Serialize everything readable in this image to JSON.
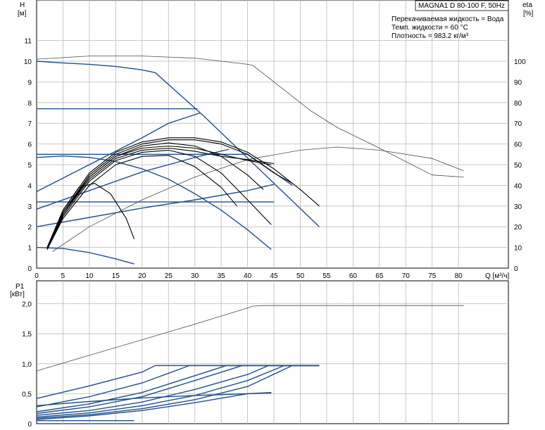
{
  "title": "MAGNA1 D 80-100 F, 50Hz",
  "conditions": [
    "Перекачиваемая жидкость = Вода",
    "Темп. жидкости = 60 °C",
    "Плотность = 983.2 кг/м³"
  ],
  "colors": {
    "blue": "#1f4e8c",
    "grid": "#b9b9b9",
    "black": "#000000",
    "thin": "#4a4a4a"
  },
  "chart_data": [
    {
      "type": "line",
      "name": "head-efficiency",
      "xlabel": "Q [м³/ч]",
      "ylabel": "H",
      "ylabel_unit": "[м]",
      "y2label": "eta",
      "y2label_unit": "[%]",
      "xlim": [
        0,
        90
      ],
      "ylim": [
        0,
        12
      ],
      "y2lim": [
        0,
        120
      ],
      "x_ticks": [
        0,
        5,
        10,
        15,
        20,
        25,
        30,
        35,
        40,
        45,
        50,
        55,
        60,
        65,
        70,
        75,
        80
      ],
      "y_ticks": [
        0,
        1,
        2,
        3,
        4,
        5,
        6,
        7,
        8,
        9,
        10,
        11
      ],
      "y2_ticks": [
        0,
        10,
        20,
        30,
        40,
        50,
        60,
        70,
        80,
        90,
        100
      ],
      "grid": true,
      "series": [
        {
          "kind": "head",
          "style": "blue",
          "x": [
            0,
            5,
            10,
            15,
            20,
            22.5,
            31.7,
            53.6
          ],
          "y": [
            10.0,
            9.92,
            9.85,
            9.75,
            9.58,
            9.45,
            7.35,
            2.0
          ]
        },
        {
          "kind": "head",
          "style": "blue",
          "x": [
            0,
            30.5
          ],
          "y": [
            7.7,
            7.7
          ]
        },
        {
          "kind": "head",
          "style": "blue",
          "x": [
            0,
            10,
            20,
            30,
            40,
            48.5
          ],
          "y": [
            5.5,
            5.5,
            5.5,
            5.5,
            5.5,
            4.0
          ]
        },
        {
          "kind": "head",
          "style": "blue",
          "x": [
            0,
            45
          ],
          "y": [
            3.2,
            3.2
          ]
        },
        {
          "kind": "head",
          "style": "blue",
          "x": [
            0,
            5,
            10,
            15,
            20,
            25,
            30,
            35,
            40,
            44.5
          ],
          "y": [
            5.35,
            5.42,
            5.35,
            5.15,
            4.8,
            4.3,
            3.6,
            2.8,
            1.85,
            0.9
          ]
        },
        {
          "kind": "head",
          "style": "blue",
          "x": [
            0,
            5,
            10,
            15,
            18.5
          ],
          "y": [
            1.0,
            0.95,
            0.75,
            0.45,
            0.2
          ]
        },
        {
          "kind": "control",
          "style": "blue",
          "x": [
            0,
            10,
            20,
            25,
            31
          ],
          "y": [
            3.7,
            5.0,
            6.3,
            7.0,
            7.5
          ]
        },
        {
          "kind": "control",
          "style": "blue",
          "x": [
            0,
            10,
            20,
            30,
            36.5
          ],
          "y": [
            2.85,
            3.75,
            4.65,
            5.35,
            5.75
          ]
        },
        {
          "kind": "control",
          "style": "blue",
          "x": [
            0,
            10,
            20,
            30,
            40,
            45
          ],
          "y": [
            2.0,
            2.45,
            2.9,
            3.3,
            3.75,
            4.05
          ]
        },
        {
          "kind": "eff",
          "style": "thin",
          "x": [
            0,
            10,
            20,
            30,
            40,
            41,
            52,
            57,
            65,
            75,
            81
          ],
          "y2": [
            101,
            102.5,
            102.5,
            101.5,
            98.5,
            98,
            76,
            68,
            58,
            45,
            44
          ]
        },
        {
          "kind": "eff",
          "style": "thin",
          "x": [
            3,
            10,
            20,
            30,
            40,
            50,
            57,
            65,
            75,
            81
          ],
          "y2": [
            8,
            20,
            33,
            44,
            52.5,
            57,
            58.5,
            57,
            53,
            47
          ]
        },
        {
          "kind": "eff",
          "style": "black",
          "x": [
            2,
            5,
            10,
            15,
            20,
            25,
            30,
            35,
            40,
            45,
            50,
            53.6
          ],
          "y2": [
            10,
            28,
            46,
            56,
            61,
            63,
            63,
            61,
            56,
            48,
            38,
            30
          ]
        },
        {
          "kind": "eff",
          "style": "black",
          "x": [
            2,
            5,
            10,
            15,
            20,
            25,
            30,
            35,
            40,
            45,
            48.5
          ],
          "y2": [
            10,
            27,
            45,
            55,
            60,
            62,
            62,
            60,
            55,
            46,
            41
          ]
        },
        {
          "kind": "eff",
          "style": "black",
          "x": [
            2,
            5,
            10,
            15,
            20,
            25,
            30,
            35,
            40,
            43
          ],
          "y2": [
            9,
            26,
            44,
            54,
            59,
            60.5,
            59,
            54,
            45,
            38
          ]
        },
        {
          "kind": "eff",
          "style": "black",
          "x": [
            2,
            5,
            10,
            15,
            20,
            25,
            30,
            35,
            40,
            44.5
          ],
          "y2": [
            10,
            27,
            44,
            54,
            58,
            59,
            58,
            55,
            52,
            50
          ]
        },
        {
          "kind": "eff",
          "style": "black",
          "x": [
            2,
            5,
            10,
            15,
            20,
            25,
            30,
            35,
            40,
            45
          ],
          "y2": [
            9,
            26,
            43,
            53,
            57,
            58,
            56.5,
            54,
            52.5,
            50.5
          ]
        },
        {
          "kind": "eff",
          "style": "black",
          "x": [
            2,
            5,
            10,
            15,
            20,
            25,
            30,
            35,
            40,
            44.5
          ],
          "y2": [
            9,
            25,
            42,
            52,
            56,
            57,
            54,
            46,
            33,
            21
          ]
        },
        {
          "kind": "eff",
          "style": "black",
          "x": [
            2,
            5,
            10,
            15,
            20,
            25,
            30,
            35,
            38
          ],
          "y2": [
            9,
            24,
            40,
            50,
            54,
            54.5,
            49,
            39,
            30
          ]
        },
        {
          "kind": "eff",
          "style": "black",
          "x": [
            2,
            5,
            8,
            11,
            14,
            17,
            18.5
          ],
          "y2": [
            10,
            28,
            39,
            41,
            36,
            24,
            14
          ]
        }
      ]
    },
    {
      "type": "line",
      "name": "power",
      "ylabel": "P1",
      "ylabel_unit": "[кВт]",
      "xlim": [
        0,
        90
      ],
      "ylim": [
        0,
        2.2
      ],
      "y_ticks": [
        0,
        0.5,
        1.0,
        1.5,
        2.0
      ],
      "y_tick_labels": [
        "0",
        "0,5",
        "1,0",
        "1,5",
        "2,0"
      ],
      "grid": true,
      "series": [
        {
          "style": "thin",
          "x": [
            0,
            10,
            20,
            30,
            40,
            41,
            43,
            81
          ],
          "y": [
            0.88,
            1.14,
            1.4,
            1.66,
            1.93,
            1.96,
            1.97,
            1.97
          ]
        },
        {
          "style": "blue",
          "x": [
            0,
            10,
            20,
            22.5,
            53.6
          ],
          "y": [
            0.42,
            0.63,
            0.86,
            0.97,
            0.97
          ]
        },
        {
          "style": "blue",
          "x": [
            0,
            10,
            20,
            29,
            53.6
          ],
          "y": [
            0.28,
            0.45,
            0.68,
            0.97,
            0.97
          ]
        },
        {
          "style": "blue",
          "x": [
            0,
            10,
            20,
            30,
            36,
            53.6
          ],
          "y": [
            0.2,
            0.33,
            0.52,
            0.8,
            0.97,
            0.97
          ]
        },
        {
          "style": "blue",
          "x": [
            0,
            10,
            20,
            30,
            39,
            53.6
          ],
          "y": [
            0.17,
            0.28,
            0.45,
            0.72,
            0.97,
            0.97
          ]
        },
        {
          "style": "blue",
          "x": [
            0,
            10,
            20,
            30,
            40,
            44,
            53.6
          ],
          "y": [
            0.14,
            0.22,
            0.36,
            0.57,
            0.82,
            0.97,
            0.97
          ]
        },
        {
          "style": "blue",
          "x": [
            0,
            10,
            20,
            30,
            40,
            47,
            53.6
          ],
          "y": [
            0.11,
            0.18,
            0.3,
            0.47,
            0.72,
            0.97,
            0.97
          ]
        },
        {
          "style": "blue",
          "x": [
            0,
            10,
            20,
            30,
            40,
            48.5,
            53.6
          ],
          "y": [
            0.09,
            0.15,
            0.25,
            0.4,
            0.62,
            0.97,
            0.97
          ]
        },
        {
          "style": "blue",
          "x": [
            0,
            10,
            20,
            30,
            40,
            44.5
          ],
          "y": [
            0.07,
            0.13,
            0.22,
            0.35,
            0.5,
            0.52
          ]
        },
        {
          "style": "blue",
          "x": [
            0,
            10,
            20,
            30,
            40,
            44.5
          ],
          "y": [
            0.3,
            0.37,
            0.43,
            0.47,
            0.5,
            0.51
          ]
        },
        {
          "style": "blue",
          "x": [
            0,
            18.5
          ],
          "y": [
            0.05,
            0.05
          ]
        }
      ]
    }
  ]
}
